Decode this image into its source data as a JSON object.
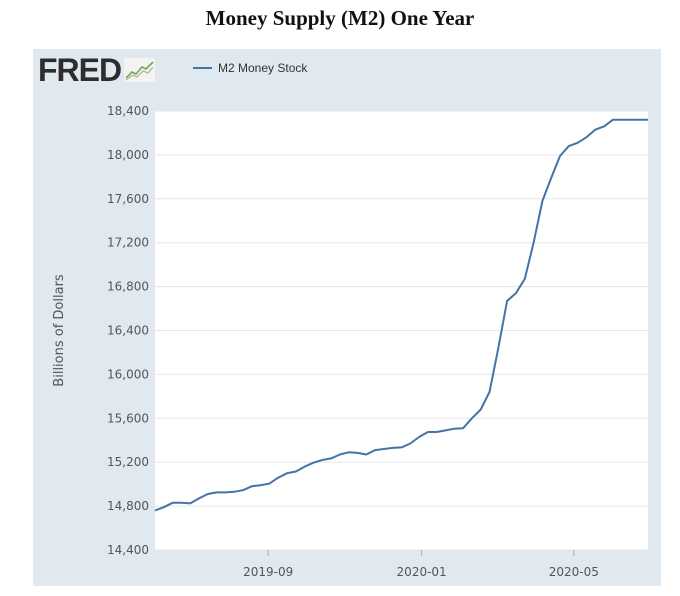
{
  "page": {
    "title": "Money Supply (M2) One Year"
  },
  "logo": {
    "text": "FRED",
    "mark_icon": "fred-chart-icon"
  },
  "colors": {
    "panel_background": "#e1e9f0",
    "plot_background": "#ffffff",
    "series": "#4572a7",
    "gridline": "#e6e6e6"
  },
  "chart_data": {
    "type": "line",
    "title": "Money Supply (M2) One Year",
    "xlabel": "",
    "ylabel": "Billions of Dollars",
    "ylim": [
      14400,
      18400
    ],
    "yticks": [
      14400,
      14800,
      15200,
      15600,
      16000,
      16400,
      16800,
      17200,
      17600,
      18000,
      18400
    ],
    "ytick_labels": [
      "14,400",
      "14,800",
      "15,200",
      "15,600",
      "16,000",
      "16,400",
      "16,800",
      "17,200",
      "17,600",
      "18,000",
      "18,400"
    ],
    "xlim": [
      "2019-06-03",
      "2020-06-29"
    ],
    "xticks": [
      "2019-09-01",
      "2020-01-01",
      "2020-05-01"
    ],
    "xtick_labels": [
      "2019-09",
      "2020-01",
      "2020-05"
    ],
    "grid": true,
    "legend_position": "top",
    "series": [
      {
        "name": "M2 Money Stock",
        "x": [
          "2019-06-03",
          "2019-06-10",
          "2019-06-17",
          "2019-06-24",
          "2019-07-01",
          "2019-07-08",
          "2019-07-15",
          "2019-07-22",
          "2019-07-29",
          "2019-08-05",
          "2019-08-12",
          "2019-08-19",
          "2019-08-26",
          "2019-09-02",
          "2019-09-09",
          "2019-09-16",
          "2019-09-23",
          "2019-09-30",
          "2019-10-07",
          "2019-10-14",
          "2019-10-21",
          "2019-10-28",
          "2019-11-04",
          "2019-11-11",
          "2019-11-18",
          "2019-11-25",
          "2019-12-02",
          "2019-12-09",
          "2019-12-16",
          "2019-12-23",
          "2019-12-30",
          "2020-01-06",
          "2020-01-13",
          "2020-01-20",
          "2020-01-27",
          "2020-02-03",
          "2020-02-10",
          "2020-02-17",
          "2020-02-24",
          "2020-03-02",
          "2020-03-09",
          "2020-03-16",
          "2020-03-23",
          "2020-03-30",
          "2020-04-06",
          "2020-04-13",
          "2020-04-20",
          "2020-04-27",
          "2020-05-04",
          "2020-05-11",
          "2020-05-18",
          "2020-05-25",
          "2020-06-01",
          "2020-06-08",
          "2020-06-15",
          "2020-06-22",
          "2020-06-29"
        ],
        "y": [
          14760,
          14790,
          14830,
          14830,
          14825,
          14870,
          14910,
          14925,
          14925,
          14930,
          14945,
          14980,
          14990,
          15005,
          15060,
          15100,
          15115,
          15160,
          15195,
          15220,
          15235,
          15270,
          15290,
          15285,
          15270,
          15310,
          15320,
          15330,
          15335,
          15370,
          15430,
          15475,
          15475,
          15490,
          15505,
          15510,
          15600,
          15680,
          15840,
          16240,
          16670,
          16740,
          16870,
          17200,
          17580,
          17790,
          17990,
          18080,
          18110,
          18160,
          18230,
          18260,
          18320,
          18320,
          18320,
          18320,
          18320
        ]
      }
    ]
  }
}
